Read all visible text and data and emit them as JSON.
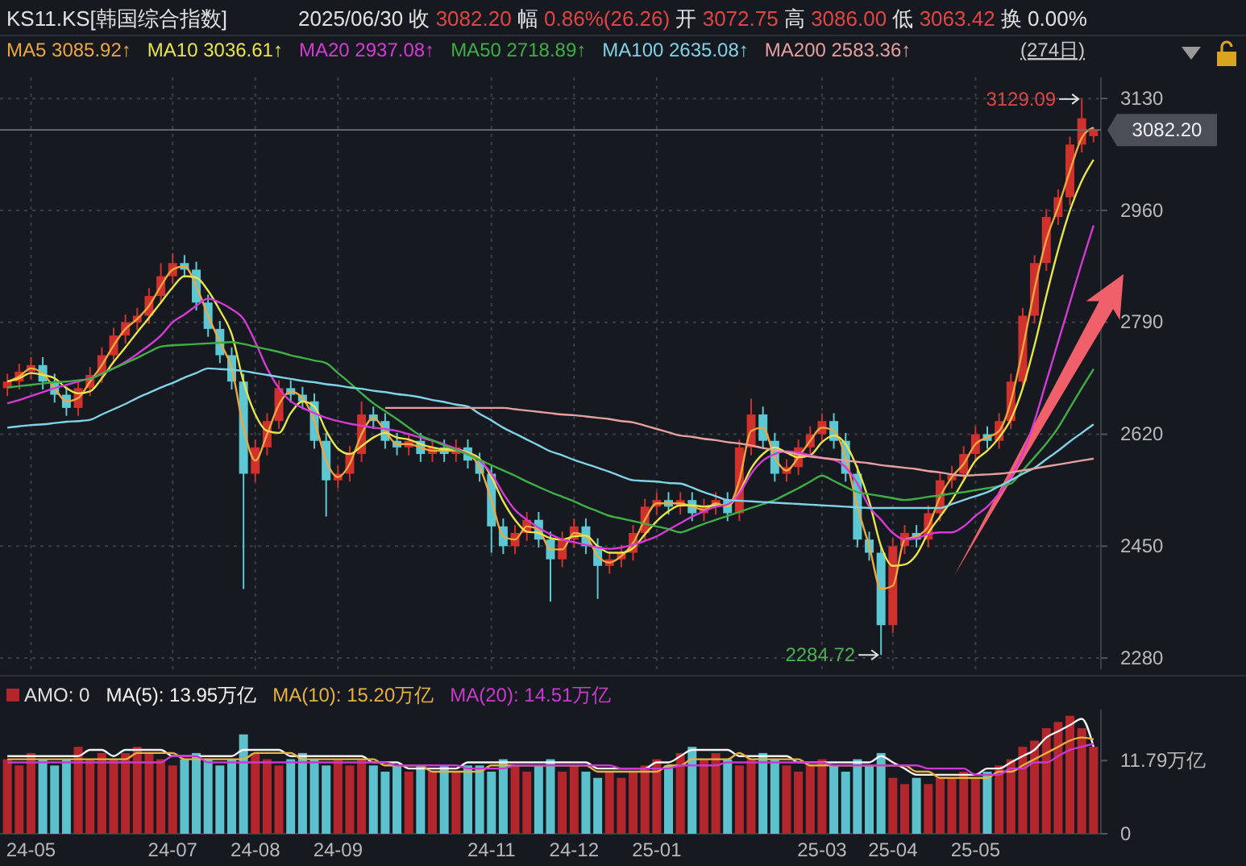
{
  "chart_data": [
    {
      "type": "candlestick",
      "title": "KS11.KS[韩国综合指数]",
      "subtitle": "2025/06/30 收 3082.20 幅 0.86%(26.26) 开 3072.75 高 3086.00 低 3063.42 换 0.00%",
      "categories": [
        null,
        null,
        null,
        null,
        null,
        null,
        null,
        null,
        null,
        null,
        null,
        null,
        null,
        null,
        null,
        null,
        null,
        null,
        null,
        null,
        null,
        null,
        null,
        null,
        null,
        null,
        null,
        null,
        null,
        null,
        null,
        null,
        null,
        null,
        null,
        null,
        null,
        null,
        null,
        null,
        null,
        null,
        null,
        null,
        null,
        null,
        null,
        null,
        null,
        null,
        null,
        null,
        null,
        null,
        null,
        null,
        null,
        null,
        null,
        null,
        null,
        null,
        null,
        null,
        null,
        null,
        null,
        null,
        null,
        null,
        null,
        null,
        null,
        null,
        null,
        null,
        null,
        null,
        null,
        null,
        null,
        null,
        null,
        null,
        null,
        null,
        null,
        null,
        null,
        null,
        null,
        null,
        null
      ],
      "ohlc": [
        [
          2690,
          2712,
          2678,
          2700
        ],
        [
          2700,
          2727,
          2688,
          2715
        ],
        [
          2715,
          2737,
          2703,
          2725
        ],
        [
          2725,
          2737,
          2688,
          2700
        ],
        [
          2700,
          2712,
          2668,
          2680
        ],
        [
          2680,
          2692,
          2648,
          2660
        ],
        [
          2660,
          2702,
          2648,
          2690
        ],
        [
          2690,
          2722,
          2678,
          2710
        ],
        [
          2710,
          2752,
          2698,
          2740
        ],
        [
          2740,
          2782,
          2728,
          2770
        ],
        [
          2770,
          2802,
          2758,
          2790
        ],
        [
          2790,
          2812,
          2778,
          2800
        ],
        [
          2800,
          2842,
          2788,
          2830
        ],
        [
          2830,
          2880,
          2818,
          2860
        ],
        [
          2860,
          2895,
          2848,
          2880
        ],
        [
          2880,
          2892,
          2858,
          2870
        ],
        [
          2870,
          2882,
          2808,
          2820
        ],
        [
          2820,
          2832,
          2768,
          2780
        ],
        [
          2780,
          2792,
          2728,
          2740
        ],
        [
          2740,
          2752,
          2688,
          2700
        ],
        [
          2700,
          2712,
          2385,
          2560
        ],
        [
          2560,
          2612,
          2548,
          2600
        ],
        [
          2600,
          2652,
          2588,
          2640
        ],
        [
          2640,
          2702,
          2628,
          2690
        ],
        [
          2690,
          2702,
          2668,
          2680
        ],
        [
          2680,
          2692,
          2658,
          2670
        ],
        [
          2670,
          2682,
          2598,
          2610
        ],
        [
          2610,
          2622,
          2495,
          2550
        ],
        [
          2550,
          2572,
          2538,
          2560
        ],
        [
          2560,
          2602,
          2548,
          2590
        ],
        [
          2590,
          2670,
          2578,
          2650
        ],
        [
          2650,
          2662,
          2628,
          2640
        ],
        [
          2640,
          2652,
          2598,
          2610
        ],
        [
          2610,
          2622,
          2588,
          2600
        ],
        [
          2600,
          2622,
          2588,
          2610
        ],
        [
          2610,
          2622,
          2578,
          2590
        ],
        [
          2590,
          2612,
          2578,
          2600
        ],
        [
          2600,
          2612,
          2578,
          2590
        ],
        [
          2590,
          2612,
          2578,
          2600
        ],
        [
          2600,
          2612,
          2568,
          2580
        ],
        [
          2580,
          2592,
          2548,
          2560
        ],
        [
          2560,
          2572,
          2440,
          2480
        ],
        [
          2480,
          2492,
          2438,
          2450
        ],
        [
          2450,
          2482,
          2438,
          2470
        ],
        [
          2470,
          2502,
          2458,
          2490
        ],
        [
          2490,
          2502,
          2448,
          2460
        ],
        [
          2460,
          2472,
          2366,
          2430
        ],
        [
          2430,
          2472,
          2418,
          2460
        ],
        [
          2460,
          2492,
          2448,
          2480
        ],
        [
          2480,
          2492,
          2438,
          2450
        ],
        [
          2450,
          2462,
          2370,
          2420
        ],
        [
          2420,
          2442,
          2408,
          2430
        ],
        [
          2430,
          2452,
          2418,
          2440
        ],
        [
          2440,
          2482,
          2428,
          2470
        ],
        [
          2470,
          2522,
          2458,
          2510
        ],
        [
          2510,
          2532,
          2498,
          2520
        ],
        [
          2520,
          2532,
          2498,
          2510
        ],
        [
          2510,
          2532,
          2498,
          2520
        ],
        [
          2520,
          2532,
          2488,
          2500
        ],
        [
          2500,
          2522,
          2488,
          2510
        ],
        [
          2510,
          2532,
          2498,
          2520
        ],
        [
          2520,
          2532,
          2488,
          2500
        ],
        [
          2500,
          2612,
          2488,
          2600
        ],
        [
          2600,
          2674,
          2588,
          2650
        ],
        [
          2650,
          2662,
          2598,
          2610
        ],
        [
          2610,
          2622,
          2548,
          2560
        ],
        [
          2560,
          2582,
          2548,
          2570
        ],
        [
          2570,
          2612,
          2558,
          2600
        ],
        [
          2600,
          2632,
          2588,
          2620
        ],
        [
          2620,
          2652,
          2608,
          2640
        ],
        [
          2640,
          2652,
          2598,
          2610
        ],
        [
          2610,
          2622,
          2548,
          2560
        ],
        [
          2560,
          2572,
          2448,
          2460
        ],
        [
          2460,
          2472,
          2428,
          2440
        ],
        [
          2440,
          2452,
          2284.72,
          2330
        ],
        [
          2330,
          2462,
          2318,
          2450
        ],
        [
          2450,
          2482,
          2438,
          2470
        ],
        [
          2470,
          2482,
          2448,
          2460
        ],
        [
          2460,
          2512,
          2448,
          2500
        ],
        [
          2500,
          2562,
          2488,
          2550
        ],
        [
          2550,
          2572,
          2538,
          2560
        ],
        [
          2560,
          2602,
          2548,
          2590
        ],
        [
          2590,
          2632,
          2578,
          2620
        ],
        [
          2620,
          2632,
          2598,
          2610
        ],
        [
          2610,
          2652,
          2598,
          2640
        ],
        [
          2640,
          2712,
          2628,
          2700
        ],
        [
          2700,
          2812,
          2688,
          2800
        ],
        [
          2800,
          2892,
          2788,
          2880
        ],
        [
          2880,
          2962,
          2868,
          2950
        ],
        [
          2950,
          2992,
          2938,
          2980
        ],
        [
          2980,
          3072,
          2968,
          3060
        ],
        [
          3060,
          3129.09,
          3048,
          3100
        ],
        [
          3072.75,
          3086.0,
          3063.42,
          3082.2
        ]
      ],
      "series": [
        {
          "type": "line",
          "name": "MA5 3085.92↑",
          "color": "#f0a640",
          "values": [
            2700,
            2708,
            2720,
            2712,
            2690,
            2670,
            2675,
            2700,
            2725,
            2755,
            2780,
            2795,
            2815,
            2845,
            2870,
            2875,
            2845,
            2800,
            2760,
            2720,
            2630,
            2580,
            2620,
            2665,
            2685,
            2675,
            2640,
            2580,
            2555,
            2575,
            2620,
            2645,
            2625,
            2605,
            2605,
            2600,
            2595,
            2595,
            2595,
            2590,
            2570,
            2520,
            2465,
            2460,
            2480,
            2475,
            2445,
            2445,
            2470,
            2465,
            2435,
            2425,
            2435,
            2455,
            2490,
            2515,
            2515,
            2515,
            2510,
            2505,
            2515,
            2510,
            2550,
            2625,
            2630,
            2585,
            2565,
            2585,
            2610,
            2630,
            2625,
            2585,
            2510,
            2450,
            2385,
            2390,
            2460,
            2465,
            2480,
            2525,
            2555,
            2575,
            2605,
            2615,
            2625,
            2670,
            2750,
            2840,
            2915,
            2965,
            3020,
            3070,
            3086
          ]
        },
        {
          "type": "line",
          "name": "MA10 3036.61↑",
          "color": "#e8e44c",
          "values": [
            2700,
            2705,
            2713,
            2710,
            2705,
            2690,
            2682,
            2685,
            2705,
            2730,
            2752,
            2775,
            2797,
            2820,
            2843,
            2860,
            2858,
            2838,
            2808,
            2772,
            2700,
            2650,
            2625,
            2622,
            2652,
            2670,
            2662,
            2625,
            2598,
            2590,
            2602,
            2615,
            2622,
            2615,
            2612,
            2605,
            2600,
            2597,
            2597,
            2592,
            2583,
            2555,
            2518,
            2490,
            2472,
            2470,
            2462,
            2460,
            2465,
            2466,
            2450,
            2440,
            2440,
            2447,
            2468,
            2488,
            2503,
            2512,
            2512,
            2510,
            2512,
            2512,
            2532,
            2568,
            2590,
            2600,
            2592,
            2585,
            2588,
            2608,
            2618,
            2605,
            2568,
            2518,
            2450,
            2420,
            2422,
            2437,
            2470,
            2495,
            2520,
            2550,
            2580,
            2595,
            2615,
            2643,
            2690,
            2755,
            2830,
            2900,
            2960,
            3005,
            3037
          ]
        },
        {
          "type": "line",
          "name": "MA20 2937.08↑",
          "color": "#d63ad6",
          "values": [
            2667,
            2672,
            2678,
            2684,
            2690,
            2695,
            2700,
            2705,
            2712,
            2720,
            2730,
            2742,
            2755,
            2770,
            2790,
            2802,
            2815,
            2826,
            2820,
            2810,
            2795,
            2760,
            2720,
            2690,
            2670,
            2660,
            2652,
            2645,
            2640,
            2636,
            2633,
            2630,
            2628,
            2625,
            2620,
            2615,
            2610,
            2605,
            2598,
            2590,
            2580,
            2560,
            2530,
            2505,
            2490,
            2478,
            2468,
            2460,
            2456,
            2452,
            2448,
            2446,
            2448,
            2452,
            2458,
            2465,
            2475,
            2485,
            2495,
            2503,
            2510,
            2513,
            2530,
            2560,
            2580,
            2590,
            2594,
            2592,
            2588,
            2584,
            2581,
            2570,
            2545,
            2510,
            2490,
            2470,
            2460,
            2462,
            2468,
            2471,
            2471,
            2480,
            2496,
            2510,
            2530,
            2555,
            2590,
            2640,
            2700,
            2760,
            2820,
            2880,
            2937
          ]
        },
        {
          "type": "line",
          "name": "MA50 2718.89↑",
          "color": "#3fae45",
          "values": [
            2691,
            2693,
            2695,
            2697,
            2699,
            2700,
            2702,
            2704,
            2712,
            2720,
            2728,
            2736,
            2745,
            2753,
            2755,
            2756,
            2757,
            2758,
            2759,
            2760,
            2757,
            2753,
            2749,
            2745,
            2740,
            2736,
            2732,
            2728,
            2713,
            2698,
            2682,
            2667,
            2655,
            2643,
            2630,
            2618,
            2611,
            2603,
            2596,
            2589,
            2581,
            2573,
            2565,
            2557,
            2548,
            2540,
            2532,
            2525,
            2518,
            2510,
            2503,
            2496,
            2492,
            2488,
            2484,
            2480,
            2476,
            2471,
            2477,
            2484,
            2490,
            2496,
            2502,
            2508,
            2514,
            2520,
            2529,
            2538,
            2548,
            2557,
            2549,
            2540,
            2532,
            2529,
            2526,
            2523,
            2520,
            2522,
            2525,
            2527,
            2530,
            2532,
            2535,
            2538,
            2541,
            2545,
            2565,
            2585,
            2606,
            2630,
            2660,
            2690,
            2719
          ]
        },
        {
          "type": "line",
          "name": "MA100 2635.08↑",
          "color": "#7fd3e6",
          "values": [
            2630,
            2632,
            2634,
            2635,
            2637,
            2639,
            2640,
            2642,
            2650,
            2658,
            2666,
            2675,
            2683,
            2691,
            2698,
            2706,
            2713,
            2720,
            2719,
            2718,
            2716,
            2713,
            2710,
            2707,
            2704,
            2701,
            2699,
            2696,
            2694,
            2691,
            2689,
            2686,
            2684,
            2681,
            2679,
            2676,
            2672,
            2669,
            2665,
            2662,
            2651,
            2641,
            2630,
            2621,
            2612,
            2603,
            2594,
            2588,
            2581,
            2575,
            2569,
            2563,
            2556,
            2550,
            2549,
            2548,
            2546,
            2545,
            2539,
            2532,
            2526,
            2520,
            2519,
            2518,
            2517,
            2516,
            2515,
            2514,
            2513,
            2512,
            2511,
            2510,
            2509,
            2508,
            2508,
            2508,
            2508,
            2508,
            2508,
            2508,
            2514,
            2520,
            2526,
            2532,
            2541,
            2550,
            2560,
            2569,
            2582,
            2595,
            2609,
            2622,
            2635
          ]
        },
        {
          "type": "line",
          "name": "MA200 2583.36↑",
          "color": "#e6a0a0",
          "values": [
            null,
            null,
            null,
            null,
            null,
            null,
            null,
            null,
            null,
            null,
            null,
            null,
            null,
            null,
            null,
            null,
            null,
            null,
            null,
            null,
            null,
            null,
            null,
            null,
            null,
            null,
            null,
            null,
            null,
            null,
            null,
            null,
            2660,
            2660,
            2660,
            2660,
            2660,
            2660,
            2660,
            2660,
            2660,
            2660,
            2660,
            2658,
            2656,
            2654,
            2652,
            2650,
            2649,
            2647,
            2645,
            2643,
            2640,
            2638,
            2633,
            2628,
            2623,
            2618,
            2616,
            2613,
            2611,
            2608,
            2606,
            2603,
            2599,
            2596,
            2593,
            2589,
            2586,
            2584,
            2582,
            2580,
            2578,
            2576,
            2573,
            2571,
            2569,
            2567,
            2564,
            2562,
            2559,
            2557,
            2558,
            2559,
            2560,
            2562,
            2565,
            2568,
            2571,
            2574,
            2577,
            2580,
            2583
          ]
        }
      ],
      "ylim": [
        2263,
        3162
      ],
      "yticks": [
        2280,
        2450,
        2620,
        2790,
        2960,
        3130
      ],
      "grid": true,
      "legend": "top left",
      "tick_labels": "y",
      "ref_lines": [
        {
          "axis": "y",
          "value": 3082.2,
          "label": "3082.20"
        }
      ],
      "annotations": [
        "(274日)",
        "3129.09",
        "2284.72"
      ]
    },
    {
      "type": "bar",
      "categories": [
        null,
        null,
        "24-05",
        null,
        null,
        null,
        null,
        null,
        null,
        null,
        null,
        null,
        null,
        null,
        "24-07",
        null,
        null,
        null,
        null,
        null,
        null,
        "24-08",
        null,
        null,
        null,
        null,
        null,
        null,
        "24-09",
        null,
        null,
        null,
        null,
        null,
        null,
        null,
        null,
        null,
        null,
        null,
        null,
        "24-11",
        null,
        null,
        null,
        null,
        null,
        null,
        "24-12",
        null,
        null,
        null,
        null,
        null,
        null,
        "25-01",
        null,
        null,
        null,
        null,
        null,
        null,
        null,
        null,
        null,
        null,
        null,
        null,
        null,
        "25-03",
        null,
        null,
        null,
        null,
        null,
        "25-04",
        null,
        null,
        null,
        null,
        null,
        null,
        "25-05",
        null,
        null,
        null,
        null,
        null,
        null,
        null,
        null,
        null,
        null
      ],
      "series": [
        {
          "type": "bar",
          "name": "AMO: 0",
          "values": [
            12,
            11,
            13,
            12,
            11,
            12,
            14,
            12,
            13,
            12,
            13,
            14,
            13,
            12,
            11,
            12,
            13,
            12,
            11,
            12,
            16,
            13,
            12,
            11,
            12,
            13,
            12,
            11,
            12,
            11,
            12,
            11,
            10,
            11,
            10,
            11,
            10,
            11,
            10,
            11,
            11,
            10,
            12,
            11,
            10,
            11,
            12,
            10,
            11,
            10,
            9,
            10,
            9,
            10,
            11,
            12,
            11,
            13,
            14,
            12,
            13,
            12,
            11,
            12,
            13,
            12,
            11,
            10,
            11,
            12,
            11,
            10,
            12,
            11,
            13,
            9,
            8,
            9,
            8,
            9,
            9,
            10,
            9,
            10,
            11,
            12,
            14,
            15,
            17,
            18,
            19,
            17,
            14
          ],
          "colors": [
            "#b3272c",
            "#b3272c",
            "#b3272c",
            "#5cc1cc",
            "#5cc1cc",
            "#5cc1cc",
            "#b3272c",
            "#b3272c",
            "#b3272c",
            "#b3272c",
            "#b3272c",
            "#b3272c",
            "#b3272c",
            "#b3272c",
            "#b3272c",
            "#5cc1cc",
            "#5cc1cc",
            "#5cc1cc",
            "#5cc1cc",
            "#5cc1cc",
            "#5cc1cc",
            "#b3272c",
            "#b3272c",
            "#b3272c",
            "#5cc1cc",
            "#5cc1cc",
            "#5cc1cc",
            "#5cc1cc",
            "#b3272c",
            "#b3272c",
            "#b3272c",
            "#5cc1cc",
            "#5cc1cc",
            "#5cc1cc",
            "#b3272c",
            "#5cc1cc",
            "#b3272c",
            "#5cc1cc",
            "#b3272c",
            "#5cc1cc",
            "#5cc1cc",
            "#5cc1cc",
            "#5cc1cc",
            "#b3272c",
            "#b3272c",
            "#5cc1cc",
            "#5cc1cc",
            "#b3272c",
            "#b3272c",
            "#5cc1cc",
            "#5cc1cc",
            "#b3272c",
            "#b3272c",
            "#b3272c",
            "#b3272c",
            "#b3272c",
            "#5cc1cc",
            "#b3272c",
            "#5cc1cc",
            "#b3272c",
            "#b3272c",
            "#5cc1cc",
            "#b3272c",
            "#b3272c",
            "#5cc1cc",
            "#5cc1cc",
            "#b3272c",
            "#b3272c",
            "#b3272c",
            "#b3272c",
            "#5cc1cc",
            "#5cc1cc",
            "#5cc1cc",
            "#5cc1cc",
            "#5cc1cc",
            "#b3272c",
            "#b3272c",
            "#5cc1cc",
            "#b3272c",
            "#b3272c",
            "#b3272c",
            "#b3272c",
            "#b3272c",
            "#5cc1cc",
            "#b3272c",
            "#b3272c",
            "#b3272c",
            "#b3272c",
            "#b3272c",
            "#b3272c",
            "#b3272c",
            "#b3272c",
            "#b3272c"
          ]
        },
        {
          "type": "line",
          "name": "MA(5): 13.95万亿",
          "color": "#f2f2f2",
          "values": [
            12.5,
            12.5,
            12.5,
            12.5,
            12.5,
            12.5,
            12.5,
            13.5,
            13.5,
            12.5,
            13.5,
            13.5,
            13.5,
            13.5,
            12.5,
            12.5,
            12.5,
            12.5,
            12.5,
            12.5,
            13.5,
            13.5,
            13.5,
            13.5,
            12.5,
            12.5,
            12.5,
            12.5,
            12.5,
            12.5,
            12.5,
            11.5,
            11.5,
            11.5,
            10.5,
            10.5,
            10.5,
            10.5,
            10.5,
            11.5,
            11.5,
            11.5,
            11.5,
            11.5,
            11.5,
            11.5,
            11.5,
            11.5,
            11.5,
            11.5,
            10.5,
            10.5,
            10.5,
            10.5,
            10.5,
            11.5,
            11.5,
            12.5,
            13.5,
            13.5,
            13.5,
            13.5,
            12.5,
            12.5,
            12.5,
            12.5,
            12.5,
            11.5,
            11.5,
            11.5,
            11.5,
            11.5,
            11.5,
            11.5,
            12.5,
            11.5,
            10.5,
            9.5,
            9.5,
            9.5,
            9.5,
            9.5,
            9.5,
            10.5,
            10.5,
            11.5,
            12.5,
            13.5,
            15.5,
            16.5,
            17.5,
            18.5,
            14
          ]
        },
        {
          "type": "line",
          "name": "MA(10): 15.20万亿",
          "color": "#e8b040",
          "values": [
            12,
            12,
            12,
            12,
            12,
            12,
            12,
            12,
            12,
            12,
            12,
            13,
            13,
            13,
            13,
            12,
            12,
            12,
            12,
            12,
            12,
            13,
            13,
            13,
            13,
            12,
            12,
            12,
            12,
            12,
            12,
            12,
            11,
            11,
            11,
            11,
            10,
            10,
            10,
            10,
            10,
            11,
            11,
            11,
            11,
            11,
            11,
            11,
            11,
            11,
            10,
            10,
            10,
            10,
            10,
            10,
            11,
            11,
            12,
            12,
            12,
            12,
            13,
            12,
            12,
            12,
            12,
            12,
            11,
            11,
            11,
            11,
            11,
            11,
            11,
            11,
            11,
            10,
            10,
            9,
            9,
            9,
            9,
            9,
            10,
            10,
            11,
            12,
            13,
            14,
            15,
            15.5,
            15.2
          ]
        },
        {
          "type": "line",
          "name": "MA(20): 14.51万亿",
          "color": "#c93ad0",
          "values": [
            11.5,
            11.5,
            11.5,
            11.5,
            11.5,
            11.5,
            11.5,
            11.5,
            11.5,
            11.5,
            11.5,
            11.5,
            11.5,
            11.5,
            12.5,
            12.5,
            12.5,
            11.5,
            11.5,
            11.5,
            11.5,
            11.5,
            11.5,
            11.5,
            11.5,
            11.5,
            11.5,
            11.5,
            11.5,
            11.5,
            11.5,
            11.5,
            11.5,
            11,
            11,
            11,
            11,
            11,
            11,
            10.5,
            10.5,
            10.5,
            10.5,
            11,
            11,
            11,
            11,
            11,
            11,
            11,
            11,
            11,
            10.5,
            10.5,
            10.5,
            10.5,
            10.5,
            11,
            11,
            11,
            11,
            11.5,
            11.5,
            11.5,
            11.5,
            11.5,
            11.5,
            11.5,
            11.5,
            11.5,
            11,
            11,
            11,
            11,
            11,
            11,
            11,
            11,
            10.5,
            10.5,
            10.5,
            10.5,
            9.5,
            9.5,
            9.5,
            10.5,
            10.5,
            11.5,
            11.5,
            12.5,
            13.5,
            14,
            14.5
          ]
        }
      ],
      "ylim": [
        0,
        20
      ],
      "yticks": [
        0,
        {
          "value": 11.79,
          "label": "11.79万亿"
        }
      ],
      "legend": "top left"
    }
  ]
}
